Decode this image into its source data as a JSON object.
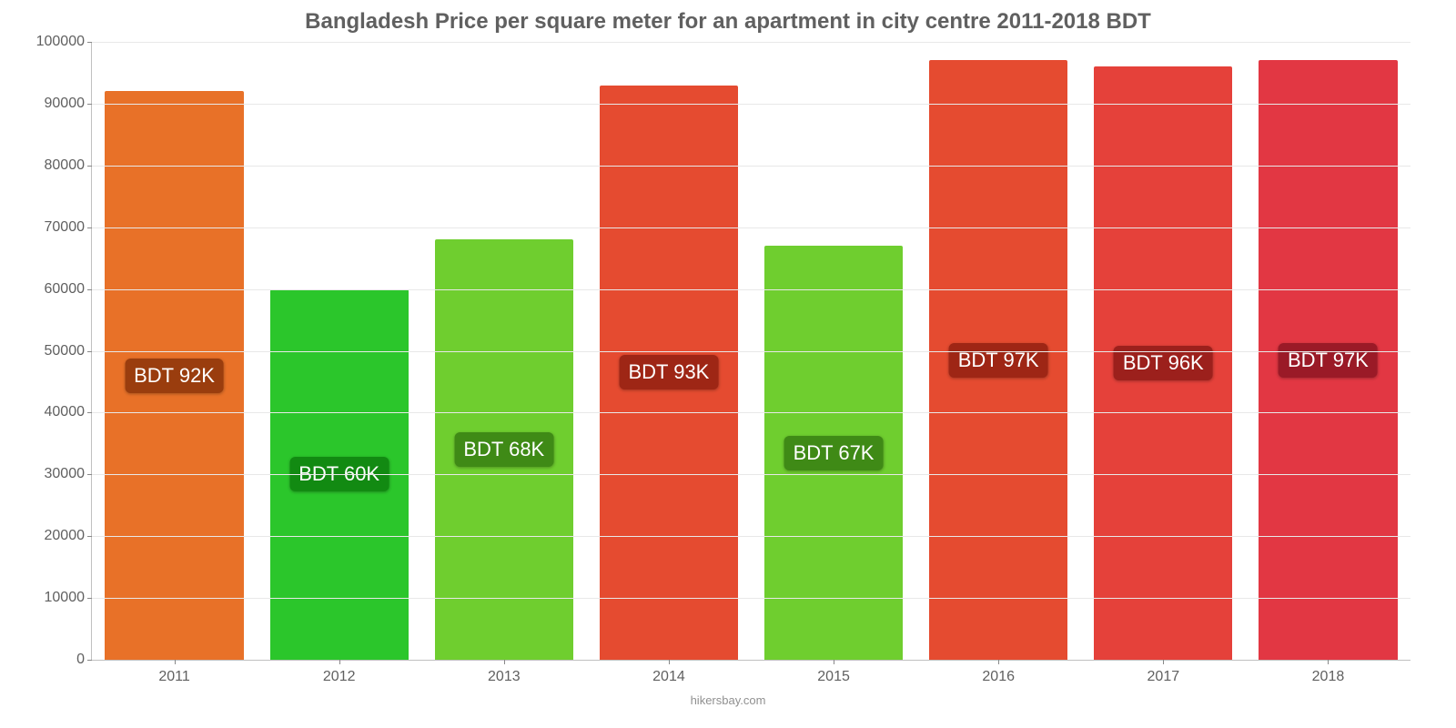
{
  "chart": {
    "type": "bar",
    "title": "Bangladesh Price per square meter for an apartment in city centre 2011-2018 BDT",
    "title_fontsize": 24,
    "title_color": "#606060",
    "attribution": "hikersbay.com",
    "attribution_fontsize": 13,
    "attribution_color": "#909090",
    "background_color": "#ffffff",
    "grid_color": "#e8e8e8",
    "axis_color": "#c0c0c0",
    "tick_color": "#888888",
    "tick_label_color": "#606060",
    "tick_fontsize": 16,
    "ylim": [
      0,
      100000
    ],
    "ytick_step": 10000,
    "bar_width_pct": 84,
    "label_fontsize": 22,
    "label_text_color": "#ffffff",
    "label_top_pct": 50,
    "categories": [
      "2011",
      "2012",
      "2013",
      "2014",
      "2015",
      "2016",
      "2017",
      "2018"
    ],
    "values": [
      92000,
      60000,
      68000,
      93000,
      67000,
      97000,
      96000,
      97000
    ],
    "value_labels": [
      "BDT 92K",
      "BDT 60K",
      "BDT 68K",
      "BDT 93K",
      "BDT 67K",
      "BDT 97K",
      "BDT 96K",
      "BDT 97K"
    ],
    "bar_colors": [
      "#e87128",
      "#2bc62b",
      "#6fce2f",
      "#e54b30",
      "#6fce2f",
      "#e54b30",
      "#e5413a",
      "#e23743"
    ],
    "label_bg_colors": [
      "#9a3d0e",
      "#128a12",
      "#3f8a16",
      "#9e2615",
      "#3f8a16",
      "#9e2615",
      "#9c201c",
      "#9a1a27"
    ]
  }
}
